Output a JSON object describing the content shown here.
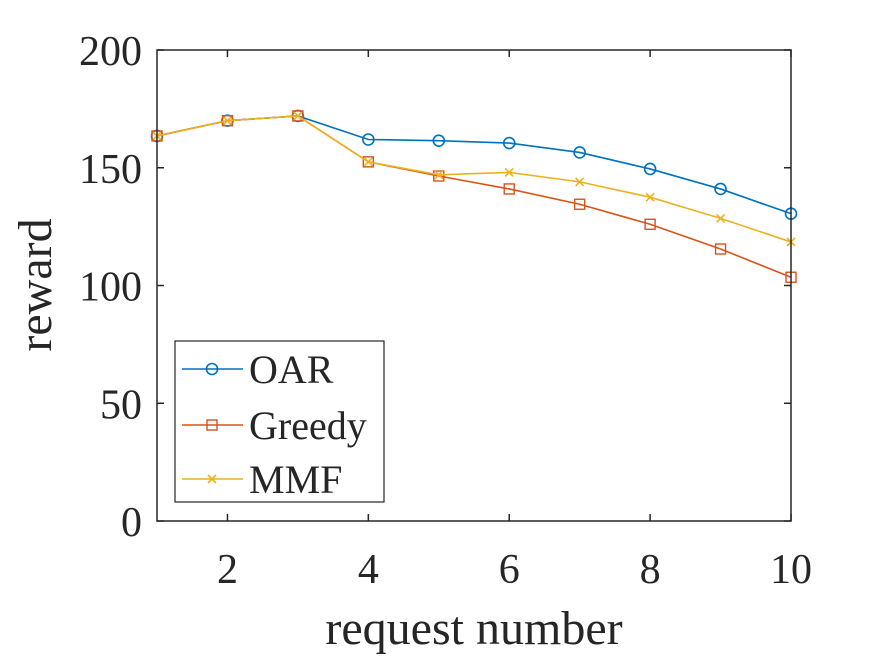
{
  "chart_data": {
    "type": "line",
    "title": "",
    "xlabel": "request number",
    "ylabel": "reward",
    "x": [
      1,
      2,
      3,
      4,
      5,
      6,
      7,
      8,
      9,
      10
    ],
    "xlim": [
      1,
      10
    ],
    "ylim": [
      0,
      200
    ],
    "xticks": [
      2,
      4,
      6,
      8,
      10
    ],
    "yticks": [
      0,
      50,
      100,
      150,
      200
    ],
    "grid": false,
    "box": true,
    "legend_position": "bottom-left",
    "series": [
      {
        "name": "OAR",
        "color": "#0072BD",
        "marker": "circle",
        "values": [
          163.5,
          170,
          172,
          162,
          161.5,
          160.5,
          156.5,
          149.5,
          141,
          130.5
        ]
      },
      {
        "name": "Greedy",
        "color": "#D95319",
        "marker": "square",
        "values": [
          163.5,
          170,
          172,
          152.5,
          146.5,
          141,
          134.5,
          126,
          115.5,
          103.5
        ]
      },
      {
        "name": "MMF",
        "color": "#EDB120",
        "marker": "x",
        "values": [
          163.5,
          170,
          172,
          152.5,
          147,
          148,
          144,
          137.5,
          128.5,
          118.5
        ]
      }
    ]
  }
}
